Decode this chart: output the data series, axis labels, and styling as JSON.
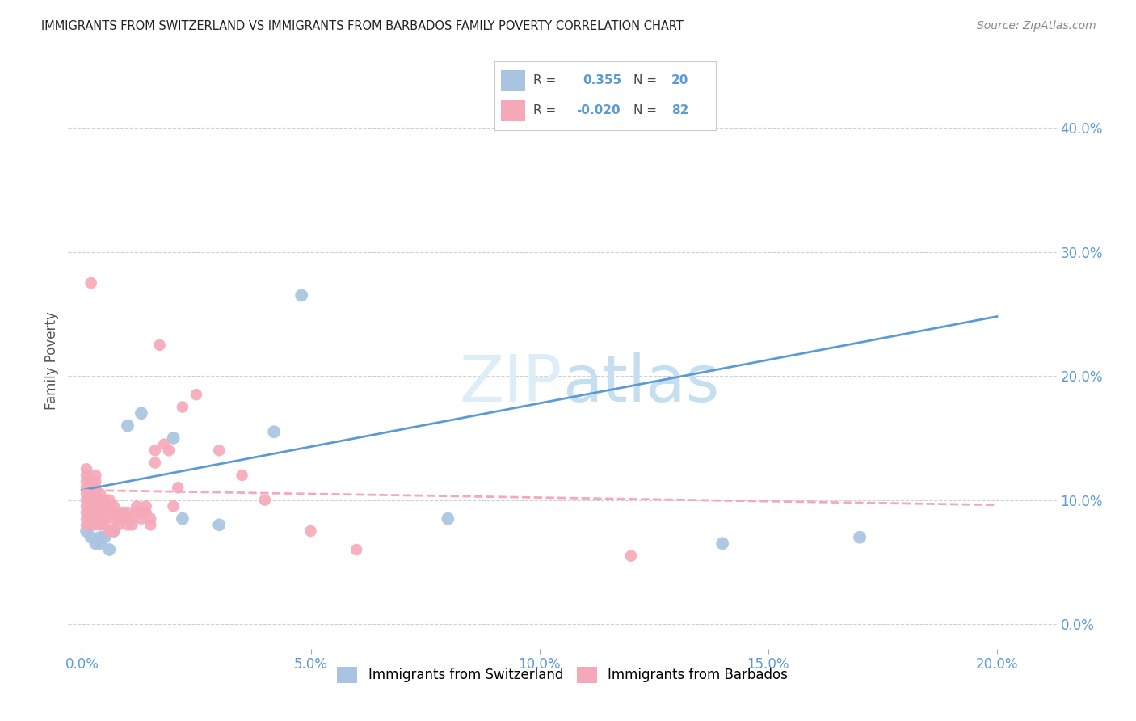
{
  "title": "IMMIGRANTS FROM SWITZERLAND VS IMMIGRANTS FROM BARBADOS FAMILY POVERTY CORRELATION CHART",
  "source": "Source: ZipAtlas.com",
  "xlabel_ticks": [
    "0.0%",
    "5.0%",
    "10.0%",
    "15.0%",
    "20.0%"
  ],
  "xlabel_values": [
    0.0,
    0.05,
    0.1,
    0.15,
    0.2
  ],
  "ylabel_ticks": [
    "0.0%",
    "10.0%",
    "20.0%",
    "30.0%",
    "40.0%"
  ],
  "ylabel_values": [
    0.0,
    0.1,
    0.2,
    0.3,
    0.4
  ],
  "xlim": [
    -0.003,
    0.213
  ],
  "ylim": [
    -0.02,
    0.445
  ],
  "switzerland_color": "#a8c4e0",
  "barbados_color": "#f5a8b8",
  "watermark_zip": "ZIP",
  "watermark_atlas": "atlas",
  "sw_line_color": "#5b9bd5",
  "bb_line_color": "#f5a8b8",
  "sw_line_x": [
    0.0,
    0.2
  ],
  "sw_line_y": [
    0.108,
    0.248
  ],
  "bb_line_x": [
    0.0,
    0.2
  ],
  "bb_line_y": [
    0.108,
    0.096
  ],
  "scatter_switzerland_x": [
    0.001,
    0.002,
    0.002,
    0.003,
    0.003,
    0.004,
    0.004,
    0.005,
    0.006,
    0.007,
    0.01,
    0.013,
    0.02,
    0.022,
    0.03,
    0.042,
    0.048,
    0.08,
    0.14,
    0.17
  ],
  "scatter_switzerland_y": [
    0.075,
    0.08,
    0.07,
    0.09,
    0.065,
    0.07,
    0.065,
    0.07,
    0.06,
    0.075,
    0.16,
    0.17,
    0.15,
    0.085,
    0.08,
    0.155,
    0.265,
    0.085,
    0.065,
    0.07
  ],
  "scatter_barbados_x": [
    0.001,
    0.001,
    0.001,
    0.001,
    0.001,
    0.001,
    0.001,
    0.001,
    0.001,
    0.001,
    0.002,
    0.002,
    0.002,
    0.002,
    0.002,
    0.002,
    0.002,
    0.002,
    0.002,
    0.002,
    0.003,
    0.003,
    0.003,
    0.003,
    0.003,
    0.003,
    0.003,
    0.003,
    0.003,
    0.003,
    0.004,
    0.004,
    0.004,
    0.004,
    0.004,
    0.004,
    0.005,
    0.005,
    0.005,
    0.005,
    0.005,
    0.006,
    0.006,
    0.006,
    0.006,
    0.007,
    0.007,
    0.007,
    0.007,
    0.008,
    0.008,
    0.008,
    0.009,
    0.009,
    0.01,
    0.01,
    0.01,
    0.011,
    0.011,
    0.012,
    0.012,
    0.013,
    0.013,
    0.014,
    0.014,
    0.015,
    0.015,
    0.016,
    0.016,
    0.017,
    0.018,
    0.019,
    0.02,
    0.021,
    0.022,
    0.025,
    0.03,
    0.035,
    0.04,
    0.05,
    0.06,
    0.12
  ],
  "scatter_barbados_y": [
    0.1,
    0.105,
    0.11,
    0.115,
    0.12,
    0.125,
    0.09,
    0.095,
    0.085,
    0.08,
    0.09,
    0.095,
    0.1,
    0.11,
    0.115,
    0.08,
    0.085,
    0.095,
    0.105,
    0.275,
    0.085,
    0.09,
    0.095,
    0.1,
    0.105,
    0.11,
    0.115,
    0.08,
    0.085,
    0.12,
    0.09,
    0.095,
    0.1,
    0.105,
    0.08,
    0.085,
    0.09,
    0.095,
    0.1,
    0.08,
    0.085,
    0.09,
    0.095,
    0.1,
    0.075,
    0.085,
    0.09,
    0.095,
    0.075,
    0.08,
    0.085,
    0.09,
    0.085,
    0.09,
    0.08,
    0.085,
    0.09,
    0.08,
    0.085,
    0.09,
    0.095,
    0.085,
    0.09,
    0.09,
    0.095,
    0.08,
    0.085,
    0.13,
    0.14,
    0.225,
    0.145,
    0.14,
    0.095,
    0.11,
    0.175,
    0.185,
    0.14,
    0.12,
    0.1,
    0.075,
    0.06,
    0.055
  ]
}
